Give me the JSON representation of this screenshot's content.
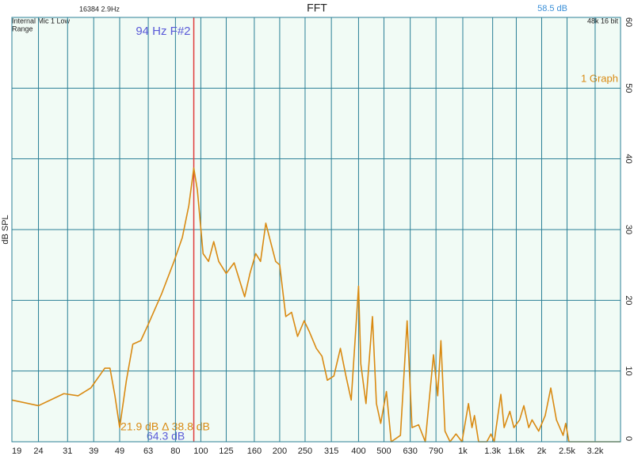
{
  "chart_data": {
    "type": "line",
    "title": "FFT",
    "info_left": "16384  2.9Hz",
    "device_lines": [
      "Internal Mic 1 Low",
      "Range"
    ],
    "level_top": "58.5 dB",
    "format": "48k 16 bit",
    "graph_count": "1 Graph",
    "y_label": "dB SPL",
    "cursor": {
      "x": 94,
      "label": "94 Hz F#2",
      "color": "#e03a3a"
    },
    "readout_delta": "21.9 dB Δ 38.8 dB",
    "readout_level": "64.3 dB",
    "log_x": true,
    "grid": true,
    "xlim": [
      19,
      4000
    ],
    "ylim": [
      0,
      60
    ],
    "xticks": [
      19,
      24,
      31,
      39,
      49,
      63,
      80,
      100,
      125,
      160,
      200,
      250,
      315,
      400,
      500,
      630,
      790,
      {
        "value": 1000,
        "label": "1k"
      },
      {
        "value": 1300,
        "label": "1.3k"
      },
      {
        "value": 1600,
        "label": "1.6k"
      },
      {
        "value": 2000,
        "label": "2k"
      },
      {
        "value": 2500,
        "label": "2.5k"
      },
      {
        "value": 3200,
        "label": "3.2k"
      }
    ],
    "yticks": [
      0,
      10,
      20,
      30,
      40,
      50,
      60
    ],
    "series": [
      {
        "color": "#d98a12",
        "x": [
          19,
          24,
          30,
          34,
          38,
          43,
          45,
          47,
          49,
          50,
          52,
          55,
          59,
          63,
          71,
          79,
          85,
          90,
          94,
          97,
          102,
          107,
          112,
          117,
          125,
          134,
          147,
          154,
          162,
          169,
          177,
          186,
          193,
          200,
          211,
          222,
          234,
          248,
          260,
          276,
          290,
          304,
          322,
          341,
          358,
          375,
          400,
          408,
          427,
          452,
          468,
          486,
          511,
          533,
          578,
          613,
          640,
          678,
          719,
          773,
          802,
          825,
          855,
          894,
          942,
          993,
          1051,
          1084,
          1108,
          1149,
          1235,
          1281,
          1318,
          1397,
          1438,
          1512,
          1567,
          1648,
          1710,
          1785,
          1838,
          1948,
          2063,
          2167,
          2277,
          2415,
          2470,
          2542,
          4000
        ],
        "values": [
          5.9,
          5.1,
          6.8,
          6.5,
          7.6,
          10.4,
          10.4,
          6.5,
          2.0,
          4.3,
          8.7,
          13.8,
          14.3,
          16.6,
          21.0,
          25.5,
          28.9,
          33.4,
          38.7,
          35.6,
          26.6,
          25.5,
          28.3,
          25.5,
          23.8,
          25.3,
          20.5,
          23.8,
          26.6,
          25.5,
          30.9,
          27.8,
          25.5,
          25.0,
          17.7,
          18.3,
          14.9,
          17.1,
          15.5,
          13.2,
          12.1,
          8.7,
          9.3,
          13.2,
          9.3,
          5.9,
          22.0,
          11.0,
          5.4,
          17.7,
          5.4,
          2.6,
          7.1,
          0,
          0.9,
          17.1,
          2.0,
          2.4,
          0,
          12.3,
          6.5,
          14.3,
          1.5,
          0,
          1.1,
          0,
          5.4,
          2.0,
          3.7,
          0,
          0,
          1.1,
          0,
          6.7,
          2.0,
          4.3,
          2.0,
          3.1,
          5.1,
          2.0,
          3.1,
          1.5,
          3.7,
          7.6,
          3.1,
          0.9,
          2.6,
          0,
          0
        ]
      }
    ]
  }
}
